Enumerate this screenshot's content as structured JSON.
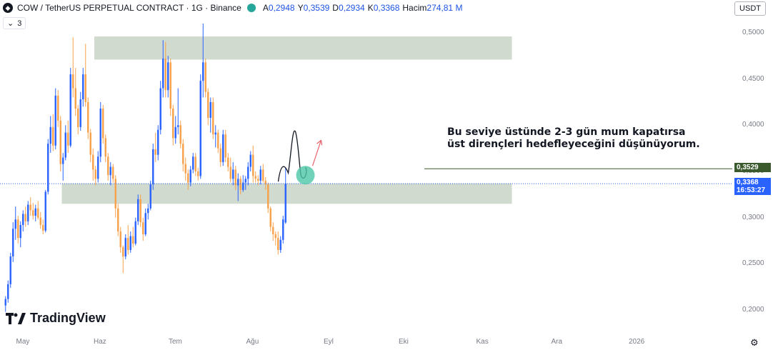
{
  "header": {
    "symbol_title": "COW / TetherUS PERPETUAL CONTRACT · 1G · Binance",
    "ohlc": [
      {
        "key": "A",
        "value": "0,2948"
      },
      {
        "key": "Y",
        "value": "0,3539"
      },
      {
        "key": "D",
        "value": "0,2934"
      },
      {
        "key": "K",
        "value": "0,3368"
      }
    ],
    "volume_label": "Hacim",
    "volume_value": "274,81 M",
    "indicator_count": "3",
    "currency": "USDT"
  },
  "annotation": {
    "line1": "Bu seviye üstünde 2-3 gün mum kapatırsa",
    "line2": "üst dirençleri hedefleyeceğini düşünüyorum."
  },
  "price_labels": {
    "level": "0,3529",
    "last": "0,3368",
    "countdown": "16:53:27"
  },
  "branding": {
    "logo_text": "TradingView"
  },
  "colors": {
    "up": "#2962ff",
    "down": "#f7a14a",
    "zone": "#c9d4c5",
    "level_line": "#3a5a2c",
    "last_price": "#2962ff"
  },
  "chart_data": {
    "type": "candlestick",
    "ylim": [
      0.18,
      0.52
    ],
    "y_ticks": [
      "0,5000",
      "0,4500",
      "0,4000",
      "0,3500",
      "0,3000",
      "0,2500",
      "0,2000"
    ],
    "y_tick_values": [
      0.5,
      0.45,
      0.4,
      0.35,
      0.3,
      0.25,
      0.2
    ],
    "x_ticks": [
      "May",
      "Haz",
      "Tem",
      "Ağu",
      "Eyl",
      "Eki",
      "Kas",
      "Ara",
      "2026"
    ],
    "x_tick_days": [
      7,
      38,
      68,
      99,
      130,
      160,
      191,
      221,
      252
    ],
    "zones": [
      {
        "from": 0.471,
        "to": 0.496,
        "start_day": 36,
        "end_day": 203
      },
      {
        "from": 0.315,
        "to": 0.337,
        "start_day": 23,
        "end_day": 203
      }
    ],
    "horizontal_level": {
      "value": 0.3529,
      "start_day": 168
    },
    "last_price": 0.3368,
    "ohlc": [
      [
        0.205,
        0.215,
        0.198,
        0.212
      ],
      [
        0.212,
        0.232,
        0.208,
        0.228
      ],
      [
        0.228,
        0.262,
        0.224,
        0.258
      ],
      [
        0.258,
        0.295,
        0.252,
        0.288
      ],
      [
        0.288,
        0.312,
        0.276,
        0.298
      ],
      [
        0.298,
        0.302,
        0.272,
        0.278
      ],
      [
        0.278,
        0.296,
        0.268,
        0.292
      ],
      [
        0.292,
        0.308,
        0.285,
        0.304
      ],
      [
        0.304,
        0.312,
        0.29,
        0.296
      ],
      [
        0.296,
        0.318,
        0.292,
        0.314
      ],
      [
        0.314,
        0.322,
        0.302,
        0.308
      ],
      [
        0.308,
        0.316,
        0.298,
        0.302
      ],
      [
        0.302,
        0.314,
        0.296,
        0.31
      ],
      [
        0.31,
        0.318,
        0.298,
        0.3
      ],
      [
        0.3,
        0.306,
        0.288,
        0.292
      ],
      [
        0.292,
        0.298,
        0.282,
        0.286
      ],
      [
        0.286,
        0.33,
        0.284,
        0.328
      ],
      [
        0.328,
        0.385,
        0.325,
        0.38
      ],
      [
        0.38,
        0.41,
        0.37,
        0.398
      ],
      [
        0.398,
        0.412,
        0.372,
        0.378
      ],
      [
        0.378,
        0.44,
        0.374,
        0.432
      ],
      [
        0.432,
        0.438,
        0.398,
        0.405
      ],
      [
        0.405,
        0.41,
        0.35,
        0.358
      ],
      [
        0.358,
        0.37,
        0.34,
        0.365
      ],
      [
        0.365,
        0.4,
        0.362,
        0.392
      ],
      [
        0.392,
        0.405,
        0.37,
        0.378
      ],
      [
        0.378,
        0.462,
        0.376,
        0.455
      ],
      [
        0.455,
        0.495,
        0.43,
        0.44
      ],
      [
        0.44,
        0.462,
        0.41,
        0.418
      ],
      [
        0.418,
        0.422,
        0.39,
        0.398
      ],
      [
        0.398,
        0.436,
        0.394,
        0.428
      ],
      [
        0.428,
        0.462,
        0.42,
        0.455
      ],
      [
        0.455,
        0.488,
        0.42,
        0.425
      ],
      [
        0.425,
        0.43,
        0.385,
        0.392
      ],
      [
        0.392,
        0.396,
        0.36,
        0.368
      ],
      [
        0.368,
        0.375,
        0.34,
        0.352
      ],
      [
        0.352,
        0.356,
        0.335,
        0.342
      ],
      [
        0.342,
        0.372,
        0.338,
        0.366
      ],
      [
        0.366,
        0.425,
        0.36,
        0.418
      ],
      [
        0.418,
        0.422,
        0.38,
        0.386
      ],
      [
        0.386,
        0.39,
        0.36,
        0.366
      ],
      [
        0.366,
        0.37,
        0.34,
        0.346
      ],
      [
        0.346,
        0.36,
        0.335,
        0.355
      ],
      [
        0.355,
        0.358,
        0.338,
        0.342
      ],
      [
        0.342,
        0.346,
        0.3,
        0.31
      ],
      [
        0.31,
        0.315,
        0.28,
        0.285
      ],
      [
        0.285,
        0.29,
        0.262,
        0.268
      ],
      [
        0.268,
        0.27,
        0.24,
        0.258
      ],
      [
        0.258,
        0.282,
        0.255,
        0.278
      ],
      [
        0.278,
        0.292,
        0.26,
        0.265
      ],
      [
        0.265,
        0.285,
        0.262,
        0.28
      ],
      [
        0.28,
        0.29,
        0.268,
        0.272
      ],
      [
        0.272,
        0.3,
        0.27,
        0.296
      ],
      [
        0.296,
        0.325,
        0.292,
        0.32
      ],
      [
        0.32,
        0.325,
        0.29,
        0.295
      ],
      [
        0.295,
        0.3,
        0.275,
        0.282
      ],
      [
        0.282,
        0.31,
        0.28,
        0.305
      ],
      [
        0.305,
        0.315,
        0.298,
        0.31
      ],
      [
        0.31,
        0.34,
        0.308,
        0.336
      ],
      [
        0.336,
        0.38,
        0.33,
        0.374
      ],
      [
        0.374,
        0.392,
        0.36,
        0.368
      ],
      [
        0.368,
        0.4,
        0.362,
        0.395
      ],
      [
        0.395,
        0.448,
        0.39,
        0.44
      ],
      [
        0.44,
        0.492,
        0.43,
        0.472
      ],
      [
        0.472,
        0.49,
        0.43,
        0.438
      ],
      [
        0.438,
        0.475,
        0.43,
        0.468
      ],
      [
        0.468,
        0.472,
        0.41,
        0.418
      ],
      [
        0.418,
        0.422,
        0.378,
        0.386
      ],
      [
        0.386,
        0.41,
        0.38,
        0.398
      ],
      [
        0.398,
        0.44,
        0.39,
        0.4
      ],
      [
        0.4,
        0.405,
        0.375,
        0.38
      ],
      [
        0.38,
        0.385,
        0.35,
        0.358
      ],
      [
        0.358,
        0.365,
        0.34,
        0.348
      ],
      [
        0.348,
        0.352,
        0.33,
        0.338
      ],
      [
        0.338,
        0.356,
        0.334,
        0.352
      ],
      [
        0.352,
        0.37,
        0.348,
        0.366
      ],
      [
        0.366,
        0.37,
        0.345,
        0.35
      ],
      [
        0.35,
        0.354,
        0.34,
        0.345
      ],
      [
        0.345,
        0.455,
        0.342,
        0.448
      ],
      [
        0.448,
        0.51,
        0.43,
        0.468
      ],
      [
        0.468,
        0.472,
        0.43,
        0.436
      ],
      [
        0.436,
        0.44,
        0.4,
        0.408
      ],
      [
        0.408,
        0.43,
        0.392,
        0.425
      ],
      [
        0.425,
        0.43,
        0.385,
        0.39
      ],
      [
        0.39,
        0.4,
        0.376,
        0.392
      ],
      [
        0.392,
        0.395,
        0.37,
        0.375
      ],
      [
        0.375,
        0.38,
        0.355,
        0.36
      ],
      [
        0.36,
        0.395,
        0.356,
        0.39
      ],
      [
        0.39,
        0.395,
        0.36,
        0.365
      ],
      [
        0.365,
        0.37,
        0.35,
        0.355
      ],
      [
        0.355,
        0.365,
        0.338,
        0.342
      ],
      [
        0.342,
        0.36,
        0.335,
        0.352
      ],
      [
        0.352,
        0.356,
        0.33,
        0.335
      ],
      [
        0.335,
        0.348,
        0.318,
        0.342
      ],
      [
        0.342,
        0.345,
        0.325,
        0.33
      ],
      [
        0.33,
        0.346,
        0.328,
        0.338
      ],
      [
        0.338,
        0.345,
        0.33,
        0.342
      ],
      [
        0.342,
        0.36,
        0.335,
        0.355
      ],
      [
        0.355,
        0.372,
        0.35,
        0.368
      ],
      [
        0.368,
        0.378,
        0.338,
        0.345
      ],
      [
        0.345,
        0.35,
        0.338,
        0.342
      ],
      [
        0.342,
        0.346,
        0.335,
        0.34
      ],
      [
        0.34,
        0.356,
        0.336,
        0.352
      ],
      [
        0.352,
        0.358,
        0.338,
        0.34
      ],
      [
        0.34,
        0.344,
        0.33,
        0.336
      ],
      [
        0.336,
        0.338,
        0.305,
        0.31
      ],
      [
        0.31,
        0.312,
        0.285,
        0.29
      ],
      [
        0.29,
        0.295,
        0.275,
        0.282
      ],
      [
        0.282,
        0.285,
        0.27,
        0.278
      ],
      [
        0.278,
        0.285,
        0.26,
        0.265
      ],
      [
        0.265,
        0.28,
        0.262,
        0.276
      ],
      [
        0.276,
        0.302,
        0.272,
        0.298
      ],
      [
        0.2948,
        0.3539,
        0.2934,
        0.3368
      ]
    ]
  }
}
